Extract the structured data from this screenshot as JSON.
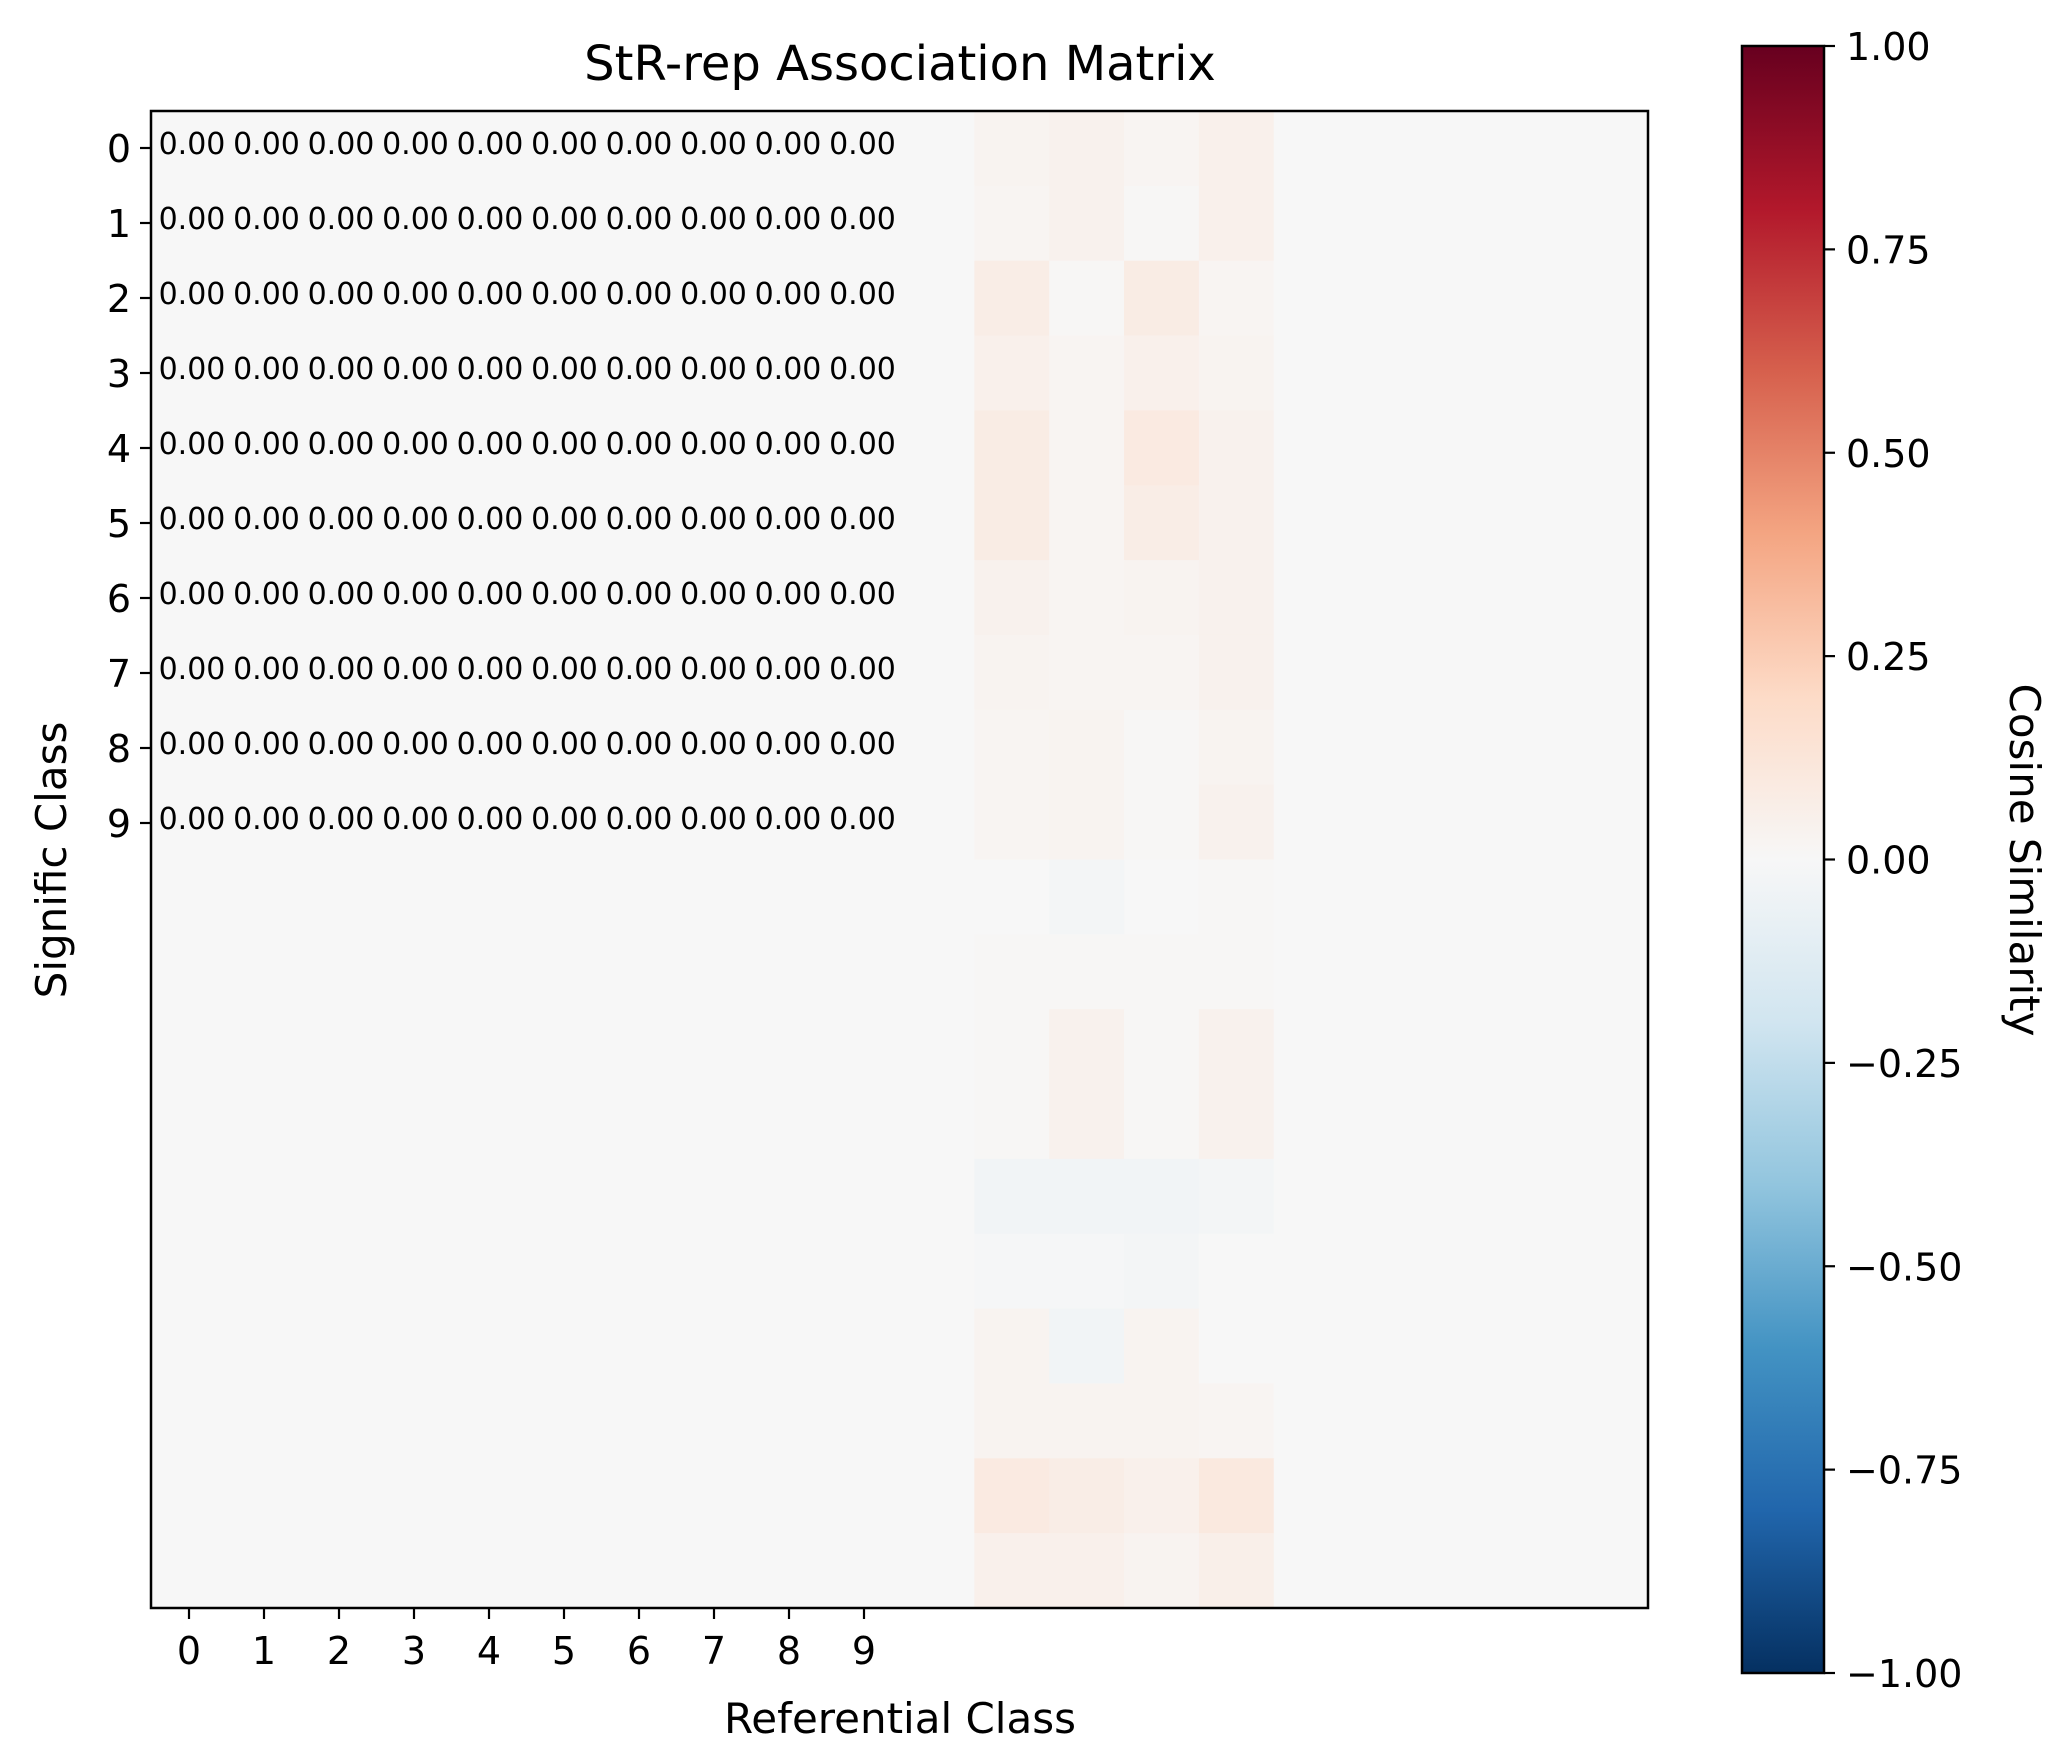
{
  "chart_data": {
    "type": "heatmap",
    "title": "StR-rep Association Matrix",
    "xlabel": "Referential Class",
    "ylabel": "Signific Class",
    "x_tick_labels": [
      "0",
      "1",
      "2",
      "3",
      "4",
      "5",
      "6",
      "7",
      "8",
      "9"
    ],
    "y_tick_labels": [
      "0",
      "1",
      "2",
      "3",
      "4",
      "5",
      "6",
      "7",
      "8",
      "9"
    ],
    "grid": false,
    "n_rows": 20,
    "n_cols": 20,
    "colormap": "RdBu_r",
    "vmin": -1.0,
    "vmax": 1.0,
    "colorbar": {
      "label": "Cosine Similarity",
      "ticks": [
        1.0,
        0.75,
        0.5,
        0.25,
        0.0,
        -0.25,
        -0.5,
        -0.75,
        -1.0
      ],
      "tick_labels": [
        "1.00",
        "0.75",
        "0.50",
        "0.25",
        "0.00",
        "−0.25",
        "−0.50",
        "−0.75",
        "−1.00"
      ]
    },
    "annotations": [
      [
        "0.00",
        "0.00",
        "0.00",
        "0.00",
        "0.00",
        "0.00",
        "0.00",
        "0.00",
        "0.00",
        "0.00"
      ],
      [
        "0.00",
        "0.00",
        "0.00",
        "0.00",
        "0.00",
        "0.00",
        "0.00",
        "0.00",
        "0.00",
        "0.00"
      ],
      [
        "0.00",
        "0.00",
        "0.00",
        "0.00",
        "0.00",
        "0.00",
        "0.00",
        "0.00",
        "0.00",
        "0.00"
      ],
      [
        "0.00",
        "0.00",
        "0.00",
        "0.00",
        "0.00",
        "0.00",
        "0.00",
        "0.00",
        "0.00",
        "0.00"
      ],
      [
        "0.00",
        "0.00",
        "0.00",
        "0.00",
        "0.00",
        "0.00",
        "0.00",
        "0.00",
        "0.00",
        "0.00"
      ],
      [
        "0.00",
        "0.00",
        "0.00",
        "0.00",
        "0.00",
        "0.00",
        "0.00",
        "0.00",
        "0.00",
        "0.00"
      ],
      [
        "0.00",
        "0.00",
        "0.00",
        "0.00",
        "0.00",
        "0.00",
        "0.00",
        "0.00",
        "0.00",
        "0.00"
      ],
      [
        "0.00",
        "0.00",
        "0.00",
        "0.00",
        "0.00",
        "0.00",
        "0.00",
        "0.00",
        "0.00",
        "0.00"
      ],
      [
        "0.00",
        "0.00",
        "0.00",
        "0.00",
        "0.00",
        "0.00",
        "0.00",
        "0.00",
        "0.00",
        "0.00"
      ],
      [
        "0.00",
        "0.00",
        "0.00",
        "0.00",
        "0.00",
        "0.00",
        "0.00",
        "0.00",
        "0.00",
        "0.00"
      ]
    ],
    "nonzero_col_start": 11,
    "nonzero_values": [
      [
        0.03,
        0.04,
        0.02,
        0.05
      ],
      [
        0.02,
        0.04,
        0.01,
        0.05
      ],
      [
        0.07,
        0.01,
        0.08,
        0.02
      ],
      [
        0.05,
        0.02,
        0.05,
        0.03
      ],
      [
        0.08,
        0.02,
        0.09,
        0.04
      ],
      [
        0.08,
        0.02,
        0.07,
        0.04
      ],
      [
        0.04,
        0.02,
        0.03,
        0.04
      ],
      [
        0.03,
        0.02,
        0.02,
        0.04
      ],
      [
        0.02,
        0.03,
        0.01,
        0.03
      ],
      [
        0.02,
        0.03,
        0.01,
        0.04
      ],
      [
        0.0,
        -0.02,
        0.0,
        0.01
      ],
      [
        0.01,
        0.01,
        0.01,
        0.01
      ],
      [
        0.01,
        0.04,
        0.01,
        0.04
      ],
      [
        0.01,
        0.04,
        0.01,
        0.04
      ],
      [
        -0.03,
        -0.03,
        -0.03,
        -0.02
      ],
      [
        -0.01,
        -0.01,
        -0.02,
        0.0
      ],
      [
        0.03,
        -0.03,
        0.03,
        0.0
      ],
      [
        0.03,
        0.03,
        0.03,
        0.02
      ],
      [
        0.09,
        0.07,
        0.05,
        0.1
      ],
      [
        0.05,
        0.05,
        0.03,
        0.06
      ]
    ]
  }
}
